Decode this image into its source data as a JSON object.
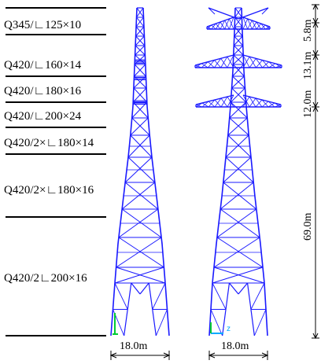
{
  "material_sections": [
    {
      "label": "Q345/∟125×10"
    },
    {
      "label": "Q420/∟160×14"
    },
    {
      "label": "Q420/∟180×16"
    },
    {
      "label": "Q420/∟200×24"
    },
    {
      "label": "Q420/2×∟180×14"
    },
    {
      "label": "Q420/2×∟180×16"
    },
    {
      "label": "Q420/2∟200×16"
    }
  ],
  "front_view": {
    "base_width": "18.0m"
  },
  "side_view": {
    "base_width": "18.0m",
    "heights": [
      "5.8m",
      "13.1m",
      "12.0m",
      "69.0m"
    ],
    "axis_label": "z"
  },
  "colors": {
    "member": "#1a1aff",
    "axis": "#00cc33",
    "dim": "#000000"
  }
}
